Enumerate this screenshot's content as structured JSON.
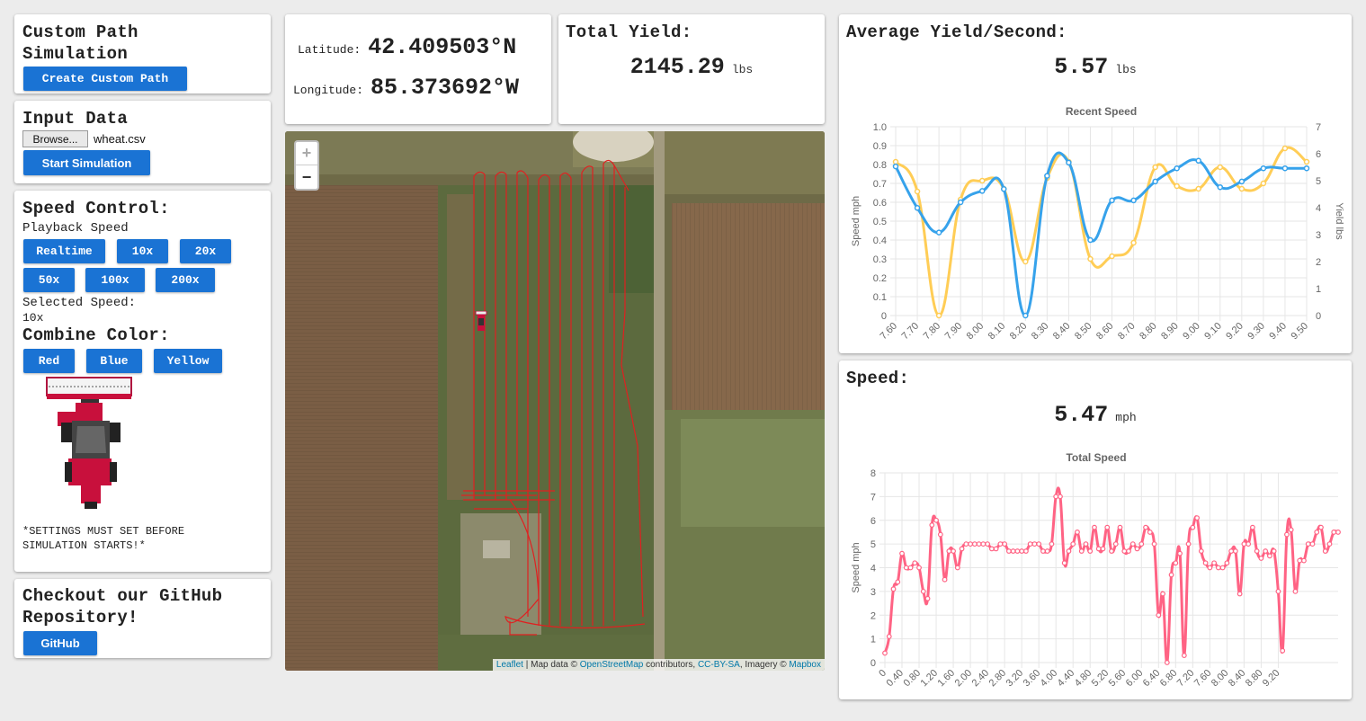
{
  "custom_path": {
    "title_line1": "Custom Path",
    "title_line2": "Simulation",
    "button": "Create Custom Path"
  },
  "input_data": {
    "title": "Input Data",
    "browse": "Browse...",
    "file_name": "wheat.csv",
    "start_button": "Start Simulation"
  },
  "speed_control": {
    "title": "Speed Control:",
    "playback_label": "Playback Speed",
    "buttons": [
      "Realtime",
      "10x",
      "20x",
      "50x",
      "100x",
      "200x"
    ],
    "selected_label": "Selected Speed:",
    "selected_value": "10x",
    "color_title": "Combine Color:",
    "color_buttons": [
      "Red",
      "Blue",
      "Yellow"
    ],
    "notice_line1": "*SETTINGS MUST SET BEFORE",
    "notice_line2": "SIMULATION STARTS!*"
  },
  "github": {
    "title_line1": "Checkout our GitHub",
    "title_line2": "Repository!",
    "button": "GitHub"
  },
  "coords": {
    "lat_label": "Latitude:",
    "lat_value": "42.409503°N",
    "lon_label": "Longitude:",
    "lon_value": "85.373692°W"
  },
  "total_yield": {
    "title": "Total Yield:",
    "value": "2145.29",
    "unit": "lbs"
  },
  "avg_yield": {
    "title": "Average Yield/Second:",
    "value": "5.57",
    "unit": "lbs"
  },
  "speed": {
    "title": "Speed:",
    "value": "5.47",
    "unit": "mph"
  },
  "map": {
    "zoom_in": "+",
    "zoom_out": "−",
    "attribution": {
      "leaflet": "Leaflet",
      "sep1": " | Map data © ",
      "osm": "OpenStreetMap",
      "sep2": " contributors, ",
      "cc": "CC-BY-SA",
      "sep3": ", Imagery © ",
      "mapbox": "Mapbox"
    }
  },
  "colors": {
    "button_blue": "#1a73d4",
    "speed_line": "#36a2eb",
    "yield_line": "#ffcd56",
    "total_speed_line": "#ff6384",
    "path_red": "#e02020"
  },
  "chart_data": [
    {
      "type": "line",
      "title": "Recent Speed",
      "ylabel": "Speed mph",
      "y2label": "Yield lbs",
      "ylim": [
        0,
        1.0
      ],
      "y2lim": [
        0,
        7
      ],
      "x": [
        "7.60",
        "7.70",
        "7.80",
        "7.90",
        "8.00",
        "8.10",
        "8.20",
        "8.30",
        "8.40",
        "8.50",
        "8.60",
        "8.70",
        "8.80",
        "8.90",
        "9.00",
        "9.10",
        "9.20",
        "9.30",
        "9.40",
        "9.50"
      ],
      "series": [
        {
          "axis": "left",
          "values": [
            0.79,
            0.57,
            0.44,
            0.6,
            0.66,
            0.67,
            0.0,
            0.74,
            0.81,
            0.4,
            0.61,
            0.61,
            0.71,
            0.78,
            0.82,
            0.68,
            0.71,
            0.78,
            0.78,
            0.78
          ]
        },
        {
          "axis": "right",
          "values": [
            5.7,
            4.6,
            0.0,
            4.3,
            5.0,
            4.7,
            2.0,
            5.1,
            5.7,
            2.1,
            2.2,
            2.7,
            5.5,
            4.8,
            4.7,
            5.5,
            4.7,
            4.9,
            6.2,
            5.7
          ]
        }
      ],
      "grid": true
    },
    {
      "type": "line",
      "title": "Total Speed",
      "ylabel": "Speed mph",
      "ylim": [
        0,
        8
      ],
      "x_ticks": [
        "0",
        "0.40",
        "0.80",
        "1.20",
        "1.60",
        "2.00",
        "2.40",
        "2.80",
        "3.20",
        "3.60",
        "4.00",
        "4.40",
        "4.80",
        "5.20",
        "5.60",
        "6.00",
        "6.40",
        "6.80",
        "7.20",
        "7.60",
        "8.00",
        "8.40",
        "8.80",
        "9.20"
      ],
      "x_step": 0.1,
      "values": [
        0.4,
        1.1,
        3.1,
        3.4,
        4.6,
        4.0,
        4.0,
        4.2,
        4.0,
        3.0,
        2.7,
        5.8,
        6.0,
        5.4,
        3.5,
        4.7,
        4.7,
        4.0,
        4.8,
        5.0,
        5.0,
        5.0,
        5.0,
        5.0,
        5.0,
        4.8,
        4.8,
        5.0,
        5.0,
        4.7,
        4.7,
        4.7,
        4.7,
        4.7,
        5.0,
        5.0,
        5.0,
        4.7,
        4.7,
        5.0,
        7.0,
        7.0,
        4.2,
        4.7,
        5.0,
        5.5,
        4.7,
        5.0,
        4.7,
        5.7,
        4.8,
        4.8,
        5.7,
        4.7,
        5.0,
        5.7,
        4.7,
        4.7,
        5.0,
        4.8,
        5.0,
        5.7,
        5.5,
        5.0,
        2.0,
        2.9,
        0.0,
        3.7,
        4.2,
        4.6,
        0.3,
        5.0,
        5.7,
        6.1,
        4.7,
        4.2,
        4.0,
        4.2,
        4.0,
        4.0,
        4.2,
        4.7,
        4.7,
        2.9,
        5.0,
        5.0,
        5.7,
        4.7,
        4.4,
        4.7,
        4.5,
        4.7,
        3.0,
        0.5,
        5.4,
        5.6,
        3.0,
        4.3,
        4.3,
        5.0,
        5.0,
        5.5,
        5.7,
        4.7,
        5.0,
        5.5,
        5.5
      ],
      "grid": true
    }
  ]
}
